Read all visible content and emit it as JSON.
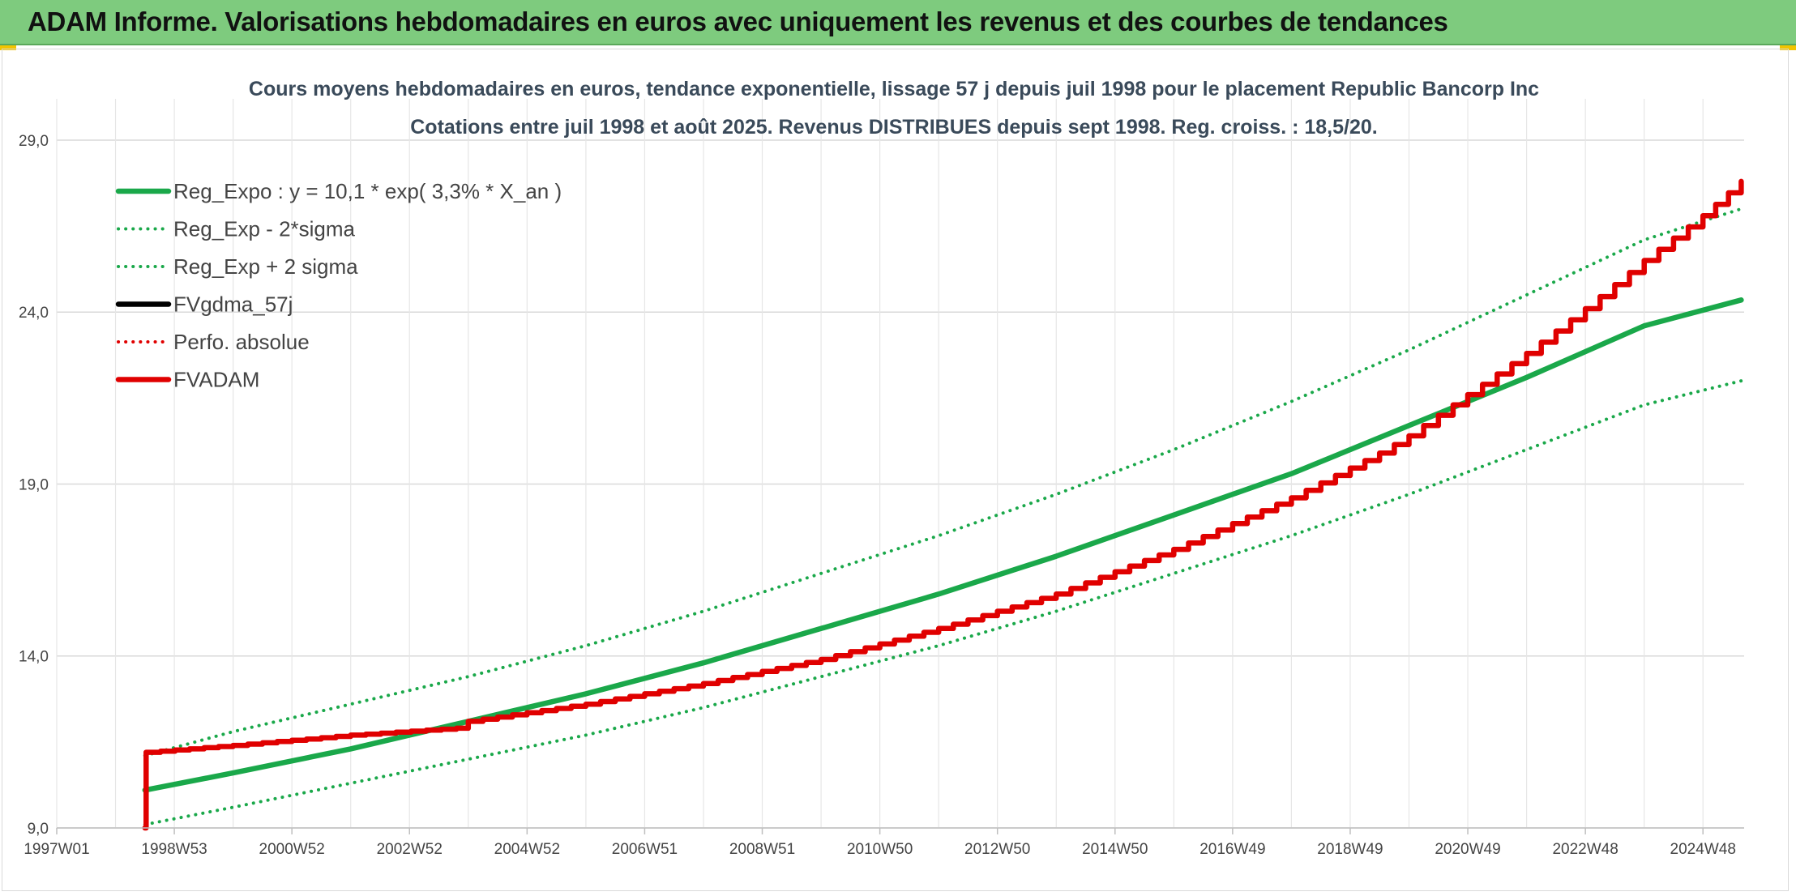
{
  "header": {
    "title": "ADAM Informe. Valorisations hebdomadaires en euros avec uniquement les revenus et des courbes de tendances"
  },
  "chart_data": {
    "type": "line",
    "title": "Cours moyens hebdomadaires en euros, tendance exponentielle, lissage 57 j depuis juil 1998 pour le placement Republic Bancorp Inc",
    "subtitle": "Cotations entre juil 1998 et août 2025. Revenus DISTRIBUES depuis sept 1998. Reg. croiss. : 18,5/20.",
    "xlabel": "",
    "ylabel": "",
    "x_ticks": [
      "1997W01",
      "1998W53",
      "2000W52",
      "2002W52",
      "2004W52",
      "2006W51",
      "2008W51",
      "2010W50",
      "2012W50",
      "2014W50",
      "2016W49",
      "2018W49",
      "2020W49",
      "2022W48",
      "2024W48"
    ],
    "y_ticks": [
      "9,0",
      "14,0",
      "19,0",
      "24,0",
      "29,0"
    ],
    "ylim": [
      9,
      30.2
    ],
    "xlim": [
      1997.0,
      2025.7
    ],
    "grid": true,
    "legend_position": "top-left",
    "series": [
      {
        "name": "Reg_Expo : y = 10,1 * exp( 3,3% *  X_an )",
        "color": "#1aa84a",
        "style": "solid",
        "x": [
          1998.5,
          2000,
          2002,
          2004,
          2006,
          2008,
          2010,
          2012,
          2014,
          2016,
          2018,
          2020,
          2022,
          2024,
          2025.65
        ],
        "values": [
          10.1,
          10.6,
          11.3,
          12.1,
          12.9,
          13.8,
          14.8,
          15.8,
          16.9,
          18.1,
          19.3,
          20.7,
          22.1,
          23.6,
          24.35
        ]
      },
      {
        "name": "Reg_Exp - 2*sigma",
        "color": "#1aa84a",
        "style": "dotted",
        "x": [
          1998.5,
          2000,
          2002,
          2004,
          2006,
          2008,
          2010,
          2012,
          2014,
          2016,
          2018,
          2020,
          2022,
          2024,
          2025.65
        ],
        "values": [
          9.1,
          9.6,
          10.3,
          11.0,
          11.7,
          12.5,
          13.4,
          14.3,
          15.3,
          16.4,
          17.5,
          18.7,
          20.0,
          21.3,
          22.0
        ]
      },
      {
        "name": "Reg_Exp + 2 sigma",
        "color": "#1aa84a",
        "style": "dotted",
        "x": [
          1998.5,
          2000,
          2002,
          2004,
          2006,
          2008,
          2010,
          2012,
          2014,
          2016,
          2018,
          2020,
          2022,
          2024,
          2025.65
        ],
        "values": [
          11.1,
          11.8,
          12.6,
          13.4,
          14.3,
          15.3,
          16.4,
          17.5,
          18.7,
          20.0,
          21.4,
          22.9,
          24.5,
          26.1,
          27.0
        ]
      },
      {
        "name": "FVgdma_57j",
        "color": "#000000",
        "style": "solid",
        "x": [],
        "values": []
      },
      {
        "name": "Perfo. absolue",
        "color": "#e00000",
        "style": "dotted",
        "x": [],
        "values": []
      },
      {
        "name": "FVADAM",
        "color": "#e00000",
        "style": "solid",
        "x": [
          1998.5,
          1998.52,
          2000,
          2002,
          2003.8,
          2004,
          2006,
          2008,
          2010,
          2012,
          2014,
          2016,
          2018,
          2019.5,
          2020,
          2021,
          2022,
          2023,
          2024,
          2025,
          2025.65
        ],
        "values": [
          9.0,
          11.2,
          11.4,
          11.7,
          11.9,
          12.1,
          12.6,
          13.2,
          13.9,
          14.8,
          15.8,
          17.1,
          18.6,
          19.9,
          20.4,
          21.6,
          22.8,
          24.1,
          25.5,
          26.8,
          27.8
        ]
      }
    ]
  }
}
